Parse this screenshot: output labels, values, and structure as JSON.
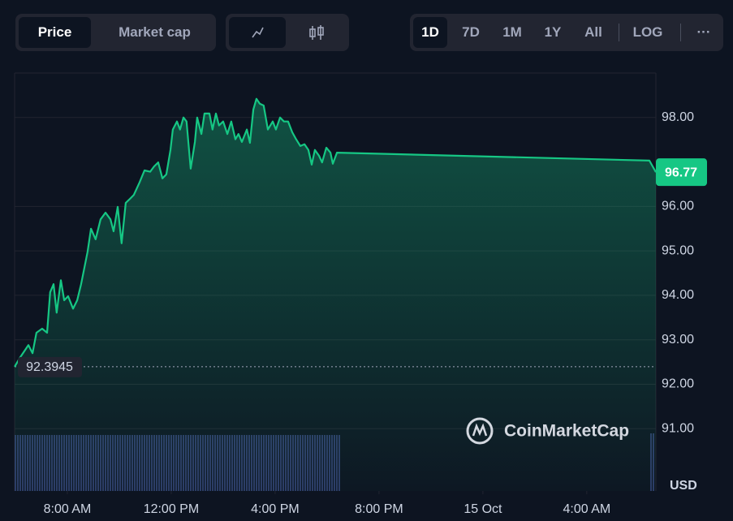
{
  "controls": {
    "metric": [
      "Price",
      "Market cap"
    ],
    "ranges": [
      "1D",
      "7D",
      "1M",
      "1Y",
      "All",
      "LOG"
    ],
    "more": "···"
  },
  "chart_data": {
    "type": "line",
    "watermark": "CoinMarketCap",
    "currency_label": "USD",
    "reference_value": 92.3945,
    "grid": true,
    "color": "#16c784",
    "xlim": [
      5.97,
      30.66
    ],
    "xticks": [
      {
        "value": 8,
        "label": "8:00 AM"
      },
      {
        "value": 12,
        "label": "12:00 PM"
      },
      {
        "value": 16,
        "label": "4:00 PM"
      },
      {
        "value": 20,
        "label": "8:00 PM"
      },
      {
        "value": 24,
        "label": "15 Oct"
      },
      {
        "value": 28,
        "label": "4:00 AM"
      }
    ],
    "ylim": [
      89.6,
      99
    ],
    "yticks": [
      {
        "value": 91,
        "label": "91.00"
      },
      {
        "value": 92,
        "label": "92.00"
      },
      {
        "value": 93,
        "label": "93.00"
      },
      {
        "value": 94,
        "label": "94.00"
      },
      {
        "value": 95,
        "label": "95.00"
      },
      {
        "value": 96,
        "label": "96.00"
      },
      {
        "value": 98,
        "label": "98.00"
      }
    ],
    "x": [
      5.97,
      6.19,
      6.5,
      6.66,
      6.81,
      7.03,
      7.22,
      7.34,
      7.47,
      7.59,
      7.75,
      7.88,
      8.03,
      8.22,
      8.38,
      8.53,
      8.78,
      8.91,
      9.09,
      9.28,
      9.47,
      9.66,
      9.78,
      9.94,
      10.09,
      10.25,
      10.41,
      10.56,
      10.78,
      10.97,
      11.19,
      11.34,
      11.5,
      11.66,
      11.81,
      11.97,
      12.06,
      12.22,
      12.34,
      12.47,
      12.59,
      12.75,
      12.91,
      13.0,
      13.16,
      13.28,
      13.47,
      13.59,
      13.72,
      13.84,
      14.0,
      14.16,
      14.31,
      14.47,
      14.59,
      14.72,
      14.91,
      15.03,
      15.16,
      15.28,
      15.41,
      15.56,
      15.72,
      15.91,
      16.03,
      16.19,
      16.34,
      16.5,
      16.66,
      16.81,
      16.97,
      17.13,
      17.28,
      17.41,
      17.53,
      17.69,
      17.81,
      17.97,
      18.13,
      18.22,
      18.38,
      30.41,
      30.66
    ],
    "values": [
      92.3945,
      92.61,
      92.88,
      92.7,
      93.16,
      93.25,
      93.16,
      94.07,
      94.25,
      93.61,
      94.34,
      93.89,
      93.98,
      93.7,
      93.89,
      94.25,
      94.98,
      95.5,
      95.26,
      95.71,
      95.86,
      95.71,
      95.44,
      95.99,
      95.17,
      96.08,
      96.17,
      96.26,
      96.54,
      96.81,
      96.78,
      96.9,
      96.99,
      96.63,
      96.72,
      97.27,
      97.73,
      97.91,
      97.73,
      98.0,
      97.91,
      96.85,
      97.45,
      98.0,
      97.63,
      98.09,
      98.09,
      97.73,
      98.09,
      97.82,
      97.91,
      97.63,
      97.91,
      97.51,
      97.63,
      97.45,
      97.73,
      97.43,
      98.18,
      98.42,
      98.31,
      98.27,
      97.73,
      97.91,
      97.73,
      98.0,
      97.91,
      97.91,
      97.67,
      97.51,
      97.36,
      97.4,
      97.27,
      96.94,
      97.27,
      97.14,
      96.99,
      97.32,
      97.21,
      96.96,
      97.21,
      97.03,
      96.77
    ]
  }
}
